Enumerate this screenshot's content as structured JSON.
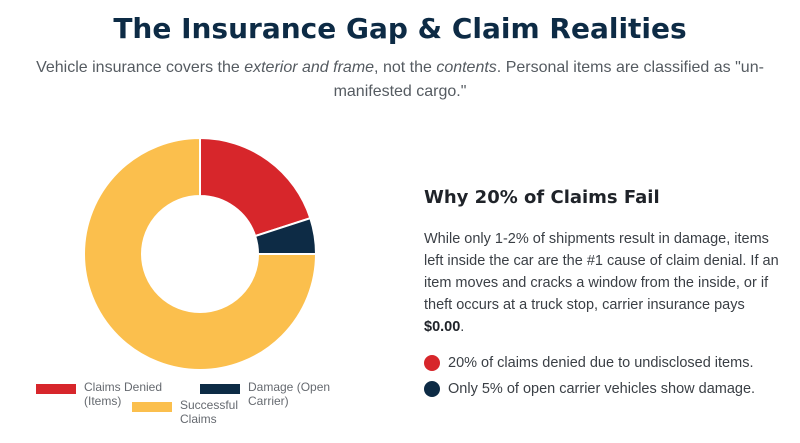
{
  "header": {
    "title": "The Insurance Gap & Claim Realities",
    "subtitle": {
      "part1": "Vehicle insurance covers the ",
      "em1": "exterior and frame",
      "part2": ", not the ",
      "em2": "contents",
      "part3": ". Personal items are classified as \"un-manifested cargo.\""
    }
  },
  "chart_data": {
    "type": "pie",
    "variant": "doughnut",
    "categories": [
      "Claims Denied (Items)",
      "Damage (Open Carrier)",
      "Successful Claims"
    ],
    "values": [
      20,
      5,
      75
    ],
    "colors": [
      "#d7262b",
      "#0d2b45",
      "#fbbf4d"
    ],
    "legend_position": "bottom",
    "legend": [
      {
        "label": "Claims Denied (Items)",
        "color": "#d7262b"
      },
      {
        "label": "Damage (Open Carrier)",
        "color": "#0d2b45"
      },
      {
        "label": "Successful Claims",
        "color": "#fbbf4d"
      }
    ]
  },
  "panel": {
    "title": "Why 20% of Claims Fail",
    "body_text": "While only 1-2% of shipments result in damage, items left inside the car are the #1 cause of claim denial. If an item moves and cracks a window from the inside, or if theft occurs at a truck stop, carrier insurance pays ",
    "body_amount": "$0.00",
    "body_end": ".",
    "bullets": [
      {
        "text": "20% of claims denied due to undisclosed items.",
        "color": "#d7262b"
      },
      {
        "text": "Only 5% of open carrier vehicles show damage.",
        "color": "#0d2b45"
      }
    ]
  }
}
